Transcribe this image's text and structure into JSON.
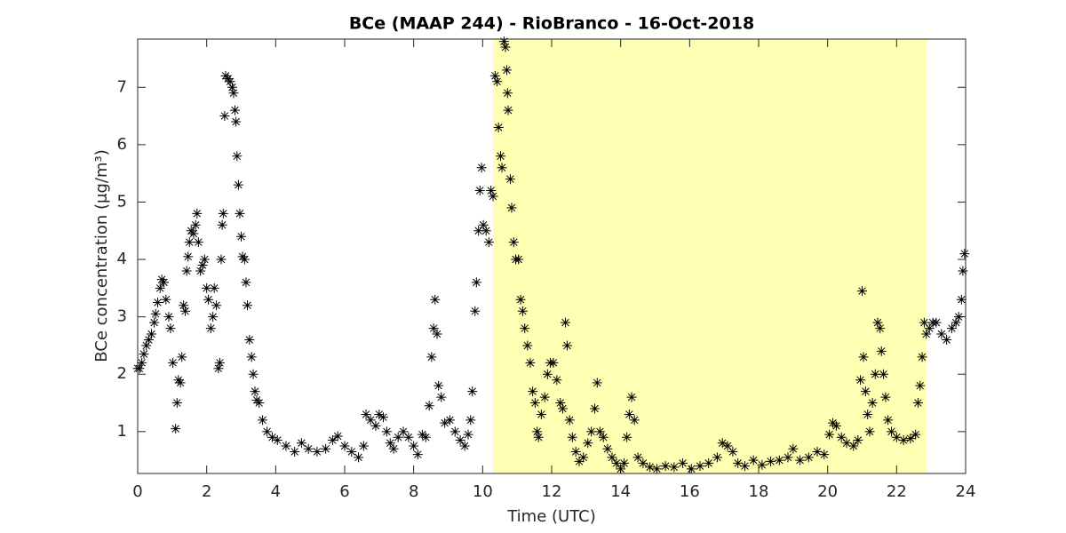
{
  "chart_data": {
    "type": "scatter",
    "title": "BCe (MAAP 244) - RioBranco - 16-Oct-2018",
    "x_label": "Time (UTC)",
    "y_label": "BCe concentration (μg/m³)",
    "color": "#000000",
    "marker": "asterisk",
    "shaded_region": {
      "x": [
        10.3,
        22.87
      ],
      "color": "#ffffb3"
    },
    "xlim": [
      0,
      24
    ],
    "xticks": [
      0,
      2,
      4,
      6,
      8,
      10,
      12,
      14,
      16,
      18,
      20,
      22,
      24
    ],
    "ylim": [
      0.27,
      7.84
    ],
    "yticks": [
      1,
      2,
      3,
      4,
      5,
      6,
      7
    ],
    "x": [
      0,
      0.05,
      0.12,
      0.18,
      0.25,
      0.32,
      0.4,
      0.48,
      0.52,
      0.58,
      0.65,
      0.7,
      0.76,
      0.82,
      0.9,
      0.95,
      1.02,
      1.1,
      1.14,
      1.18,
      1.24,
      1.28,
      1.33,
      1.38,
      1.42,
      1.46,
      1.5,
      1.55,
      1.62,
      1.68,
      1.72,
      1.76,
      1.82,
      1.88,
      1.94,
      2,
      2.05,
      2.12,
      2.18,
      2.22,
      2.28,
      2.34,
      2.38,
      2.42,
      2.45,
      2.48,
      2.52,
      2.55,
      2.62,
      2.68,
      2.74,
      2.78,
      2.82,
      2.85,
      2.88,
      2.92,
      2.96,
      3,
      3.04,
      3.1,
      3.14,
      3.18,
      3.24,
      3.3,
      3.35,
      3.4,
      3.45,
      3.52,
      3.62,
      3.75,
      3.9,
      4.05,
      4.3,
      4.55,
      4.75,
      4.95,
      5.2,
      5.45,
      5.65,
      5.8,
      6,
      6.2,
      6.4,
      6.55,
      6.62,
      6.75,
      6.9,
      7,
      7.12,
      7.22,
      7.32,
      7.42,
      7.55,
      7.7,
      7.85,
      8,
      8.12,
      8.25,
      8.35,
      8.45,
      8.52,
      8.58,
      8.62,
      8.68,
      8.72,
      8.8,
      8.9,
      9.05,
      9.2,
      9.35,
      9.48,
      9.58,
      9.65,
      9.7,
      9.78,
      9.82,
      9.88,
      9.92,
      9.97,
      10.02,
      10.1,
      10.18,
      10.24,
      10.3,
      10.36,
      10.42,
      10.46,
      10.52,
      10.56,
      10.62,
      10.66,
      10.7,
      10.72,
      10.74,
      10.8,
      10.84,
      10.9,
      10.96,
      11.04,
      11.1,
      11.16,
      11.22,
      11.3,
      11.38,
      11.45,
      11.52,
      11.58,
      11.62,
      11.7,
      11.8,
      11.88,
      11.96,
      12.05,
      12.15,
      12.25,
      12.32,
      12.4,
      12.45,
      12.52,
      12.6,
      12.7,
      12.8,
      12.92,
      13.05,
      13.15,
      13.25,
      13.32,
      13.4,
      13.5,
      13.62,
      13.75,
      13.88,
      14,
      14.1,
      14.18,
      14.25,
      14.32,
      14.4,
      14.5,
      14.65,
      14.85,
      15.05,
      15.3,
      15.55,
      15.8,
      16.05,
      16.3,
      16.55,
      16.8,
      16.95,
      17.1,
      17.25,
      17.4,
      17.6,
      17.85,
      18.1,
      18.35,
      18.6,
      18.85,
      19,
      19.2,
      19.45,
      19.7,
      19.9,
      20.05,
      20.15,
      20.25,
      20.4,
      20.55,
      20.75,
      20.88,
      20.95,
      21,
      21.04,
      21.1,
      21.16,
      21.22,
      21.3,
      21.38,
      21.45,
      21.52,
      21.56,
      21.62,
      21.68,
      21.75,
      21.85,
      22,
      22.2,
      22.4,
      22.55,
      22.62,
      22.68,
      22.74,
      22.8,
      22.86,
      22.95,
      23.05,
      23.15,
      23.3,
      23.45,
      23.6,
      23.72,
      23.8,
      23.88,
      23.92,
      23.97
    ],
    "values": [
      2.1,
      2.1,
      2.2,
      2.35,
      2.5,
      2.6,
      2.7,
      2.9,
      3.05,
      3.25,
      3.5,
      3.65,
      3.6,
      3.3,
      3.0,
      2.8,
      2.2,
      1.05,
      1.5,
      1.9,
      1.85,
      2.3,
      3.2,
      3.1,
      3.8,
      4.05,
      4.3,
      4.5,
      4.45,
      4.6,
      4.8,
      4.3,
      3.8,
      3.9,
      4.0,
      3.5,
      3.3,
      2.8,
      3.0,
      3.5,
      3.2,
      2.1,
      2.2,
      4.0,
      4.6,
      4.8,
      6.5,
      7.2,
      7.15,
      7.1,
      7.0,
      6.9,
      6.6,
      6.4,
      5.8,
      5.3,
      4.8,
      4.4,
      4.05,
      4.0,
      3.6,
      3.2,
      2.6,
      2.3,
      2.0,
      1.7,
      1.55,
      1.5,
      1.2,
      1.0,
      0.9,
      0.85,
      0.75,
      0.65,
      0.8,
      0.7,
      0.65,
      0.7,
      0.85,
      0.92,
      0.75,
      0.65,
      0.55,
      0.75,
      1.3,
      1.2,
      1.1,
      1.3,
      1.25,
      1.0,
      0.8,
      0.7,
      0.9,
      1.0,
      0.9,
      0.75,
      0.6,
      0.95,
      0.9,
      1.45,
      2.3,
      2.8,
      3.3,
      2.7,
      1.8,
      1.6,
      1.15,
      1.2,
      1.0,
      0.85,
      0.75,
      0.95,
      1.2,
      1.7,
      3.1,
      3.6,
      4.5,
      5.2,
      5.6,
      4.6,
      4.5,
      4.3,
      5.2,
      5.1,
      7.2,
      7.1,
      6.3,
      5.8,
      5.6,
      7.8,
      7.7,
      7.3,
      6.9,
      6.6,
      5.4,
      4.9,
      4.3,
      4.0,
      4.0,
      3.3,
      3.1,
      2.8,
      2.5,
      2.2,
      1.7,
      1.5,
      1.0,
      0.9,
      1.3,
      1.6,
      2.0,
      2.2,
      2.2,
      1.9,
      1.5,
      1.4,
      2.9,
      2.5,
      1.2,
      0.9,
      0.65,
      0.48,
      0.55,
      0.8,
      1.0,
      1.4,
      1.85,
      1.0,
      0.9,
      0.7,
      0.55,
      0.45,
      0.35,
      0.45,
      0.9,
      1.3,
      1.6,
      1.2,
      0.55,
      0.45,
      0.38,
      0.35,
      0.4,
      0.38,
      0.45,
      0.35,
      0.4,
      0.45,
      0.55,
      0.8,
      0.75,
      0.65,
      0.45,
      0.4,
      0.5,
      0.42,
      0.48,
      0.5,
      0.55,
      0.7,
      0.5,
      0.55,
      0.65,
      0.6,
      0.95,
      1.15,
      1.1,
      0.9,
      0.8,
      0.75,
      0.85,
      1.9,
      3.45,
      2.3,
      1.7,
      1.3,
      1.0,
      1.5,
      2.0,
      2.9,
      2.8,
      2.4,
      2.0,
      1.6,
      1.2,
      1.0,
      0.9,
      0.85,
      0.88,
      0.95,
      1.5,
      1.8,
      2.3,
      2.9,
      2.7,
      2.8,
      2.9,
      2.9,
      2.7,
      2.6,
      2.8,
      2.9,
      3.0,
      3.3,
      3.8,
      4.1
    ]
  }
}
